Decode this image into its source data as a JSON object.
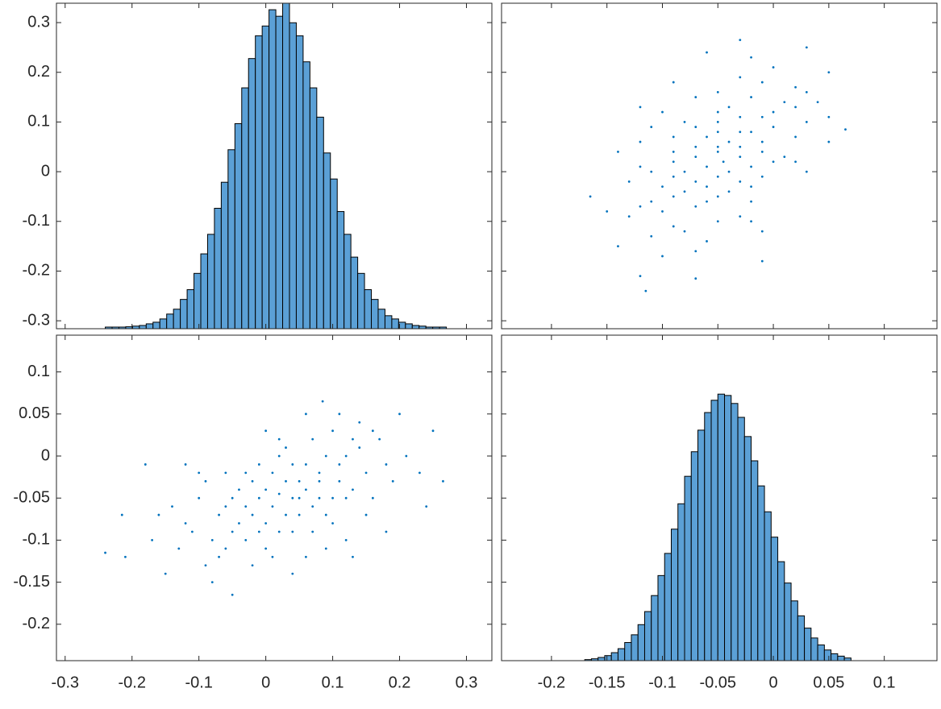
{
  "chart_data": [
    {
      "type": "histogram",
      "color": "#5ba0d6",
      "edgecolor": "#000000",
      "xlim": [
        -0.313,
        0.338
      ],
      "xticks": [
        -0.3,
        -0.2,
        -0.1,
        0,
        0.1,
        0.2,
        0.3
      ],
      "ylim": [
        -0.316,
        0.339
      ],
      "yticks": [
        -0.3,
        -0.2,
        -0.1,
        0,
        0.1,
        0.2,
        0.3
      ],
      "count_lim": [
        0,
        100
      ],
      "bins": [
        -0.24,
        -0.2298,
        -0.2196,
        -0.2094,
        -0.1992,
        -0.189,
        -0.1788,
        -0.1686,
        -0.1584,
        -0.1482,
        -0.138,
        -0.1278,
        -0.1176,
        -0.1074,
        -0.0972,
        -0.087,
        -0.0768,
        -0.0666,
        -0.0564,
        -0.0462,
        -0.036,
        -0.0258,
        -0.0156,
        -0.0054,
        0.0048,
        0.015,
        0.0252,
        0.0354,
        0.0456,
        0.0558,
        0.066,
        0.0762,
        0.0864,
        0.0966,
        0.1068,
        0.117,
        0.1272,
        0.1374,
        0.1476,
        0.1578,
        0.168,
        0.1782,
        0.1884,
        0.1986,
        0.2088,
        0.219,
        0.2292,
        0.2394,
        0.2496,
        0.2598,
        0.27
      ],
      "values": [
        0.5,
        0.5,
        0.5,
        0.6,
        0.8,
        1,
        1.5,
        2,
        3,
        4.5,
        6,
        9,
        12,
        17,
        23,
        29,
        37,
        45,
        55,
        63,
        74,
        83,
        90,
        93,
        98,
        96,
        100,
        94,
        90,
        82,
        74,
        65,
        54,
        46,
        36,
        29,
        22,
        17,
        12,
        9,
        6,
        4,
        3,
        2,
        1.5,
        1,
        0.8,
        0.5,
        0.5,
        0.5
      ]
    },
    {
      "type": "scatter",
      "color": "#0072bd",
      "xlim": [
        -0.245,
        0.1475
      ],
      "xticks": [
        -0.2,
        -0.15,
        -0.1,
        -0.05,
        0,
        0.05,
        0.1
      ],
      "ylim": [
        -0.316,
        0.339
      ],
      "yticks": [
        -0.3,
        -0.2,
        -0.1,
        0,
        0.1,
        0.2,
        0.3
      ],
      "x": [
        -0.045,
        -0.03,
        -0.06,
        -0.02,
        -0.07,
        -0.01,
        -0.08,
        -0.01,
        -0.03,
        -0.04,
        -0.05,
        -0.06,
        -0.02,
        -0.09,
        0,
        -0.02,
        -0.08,
        -0.07,
        -0.05,
        -0.04,
        -0.04,
        -0.05,
        -0.01,
        -0.1,
        0,
        -0.08,
        -0.02,
        -0.11,
        -0.05,
        0.01,
        -0.06,
        -0.03,
        -0.07,
        -0.09,
        -0.05,
        -0.03,
        0.02,
        -0.1,
        -0.03,
        -0.06,
        -0.09,
        -0.03,
        -0.03,
        -0.05,
        -0.07,
        -0.01,
        -0.12,
        0.02,
        -0.01,
        -0.09,
        0,
        -0.07,
        -0.05,
        -0.08,
        0.03,
        -0.04,
        -0.07,
        -0.11,
        -0.07,
        -0.05,
        -0.13,
        -0.1,
        -0.06,
        0.02,
        -0.09,
        -0.13,
        0.01,
        -0.02,
        -0.02,
        -0.12,
        -0.115,
        -0.07,
        -0.12,
        -0.03,
        0.03,
        0.065,
        -0.165,
        -0.12,
        -0.01,
        0.05,
        -0.14,
        0.05,
        -0.1,
        -0.06,
        0.04,
        -0.01,
        -0.11,
        -0.15,
        -0.09,
        0.03,
        0.05,
        -0.02,
        -0.14,
        0.03,
        -0.09,
        -0.12,
        -0.05,
        -0.11,
        0.02,
        0
      ],
      "values": [
        0.02,
        0.05,
        -0.03,
        0.08,
        -0.07,
        0.11,
        0,
        0.04,
        -0.02,
        0.13,
        -0.1,
        0.07,
        0.01,
        -0.05,
        0.09,
        0.15,
        -0.12,
        0.03,
        -0.01,
        0.06,
        -0.04,
        0.12,
        0.18,
        -0.08,
        0.02,
        0.1,
        -0.06,
        0,
        0.05,
        0.14,
        -0.14,
        0.08,
        -0.02,
        0.04,
        0.16,
        -0.09,
        0.07,
        -0.03,
        0.11,
        0.01,
        -0.11,
        0.19,
        0.03,
        -0.05,
        0.09,
        0.06,
        -0.07,
        0.13,
        -0.01,
        0.02,
        0.21,
        -0.16,
        0.08,
        -0.04,
        0.1,
        0,
        0.05,
        -0.13,
        0.15,
        0.04,
        -0.02,
        0.12,
        -0.06,
        0.17,
        0.07,
        -0.09,
        0.03,
        -0.1,
        0.23,
        0.01,
        -0.24,
        -0.215,
        -0.21,
        0.265,
        0.25,
        0.085,
        -0.05,
        0.13,
        -0.18,
        0.2,
        -0.15,
        0.06,
        -0.17,
        0.24,
        0.14,
        -0.12,
        0.09,
        -0.08,
        0.18,
        0,
        0.11,
        -0.03,
        0.04,
        0.16,
        -0.01,
        0.06,
        0.1,
        -0.06,
        0.02,
        0.12
      ]
    },
    {
      "type": "scatter",
      "color": "#0072bd",
      "xlim": [
        -0.313,
        0.338
      ],
      "xticks": [
        -0.3,
        -0.2,
        -0.1,
        0,
        0.1,
        0.2,
        0.3
      ],
      "ylim": [
        -0.2433,
        0.1437
      ],
      "yticks": [
        -0.2,
        -0.15,
        -0.1,
        -0.05,
        0,
        0.05,
        0.1
      ],
      "x": [
        0.02,
        0.05,
        -0.03,
        0.08,
        -0.07,
        0.11,
        0,
        0.04,
        -0.02,
        0.13,
        -0.1,
        0.07,
        0.01,
        -0.05,
        0.09,
        0.15,
        -0.12,
        0.03,
        -0.01,
        0.06,
        -0.04,
        0.12,
        0.18,
        -0.08,
        0.02,
        0.1,
        -0.06,
        0,
        0.05,
        0.14,
        -0.14,
        0.08,
        -0.02,
        0.04,
        0.16,
        -0.09,
        0.07,
        -0.03,
        0.11,
        0.01,
        -0.11,
        0.19,
        0.03,
        -0.05,
        0.09,
        0.06,
        -0.07,
        0.13,
        -0.01,
        0.02,
        0.21,
        -0.16,
        0.08,
        -0.04,
        0.1,
        0,
        0.05,
        -0.13,
        0.15,
        0.04,
        -0.02,
        0.12,
        -0.06,
        0.17,
        0.07,
        -0.09,
        0.03,
        -0.1,
        0.23,
        0.01,
        -0.24,
        -0.215,
        -0.21,
        0.265,
        0.25,
        0.085,
        -0.05,
        0.13,
        -0.18,
        0.2,
        -0.15,
        0.06,
        -0.17,
        0.24,
        0.14,
        -0.12,
        0.09,
        -0.08,
        0.18,
        0,
        0.11,
        -0.03,
        0.04,
        0.16,
        -0.01,
        0.06,
        0.1,
        -0.06,
        0.02,
        0.12
      ],
      "values": [
        -0.045,
        -0.03,
        -0.06,
        -0.02,
        -0.07,
        -0.01,
        -0.08,
        -0.01,
        -0.03,
        -0.04,
        -0.05,
        -0.06,
        -0.02,
        -0.09,
        0,
        -0.02,
        -0.08,
        -0.07,
        -0.05,
        -0.04,
        -0.04,
        -0.05,
        -0.01,
        -0.1,
        0,
        -0.08,
        -0.02,
        -0.11,
        -0.05,
        0.01,
        -0.06,
        -0.03,
        -0.07,
        -0.09,
        -0.05,
        -0.03,
        0.02,
        -0.1,
        -0.03,
        -0.06,
        -0.09,
        -0.03,
        -0.03,
        -0.05,
        -0.07,
        -0.01,
        -0.12,
        0.02,
        -0.01,
        -0.09,
        0,
        -0.07,
        -0.05,
        -0.08,
        0.03,
        -0.04,
        -0.07,
        -0.11,
        -0.07,
        -0.05,
        -0.13,
        -0.1,
        -0.06,
        0.02,
        -0.09,
        -0.13,
        0.01,
        -0.02,
        -0.02,
        -0.12,
        -0.115,
        -0.07,
        -0.12,
        -0.03,
        0.03,
        0.065,
        -0.165,
        -0.12,
        -0.01,
        0.05,
        -0.14,
        0.05,
        -0.1,
        -0.06,
        0.04,
        -0.01,
        -0.11,
        -0.15,
        -0.09,
        0.03,
        0.05,
        -0.02,
        -0.14,
        0.03,
        -0.09,
        -0.12,
        -0.05,
        -0.11,
        0.02,
        0
      ]
    },
    {
      "type": "histogram",
      "color": "#5ba0d6",
      "edgecolor": "#000000",
      "xlim": [
        -0.245,
        0.1475
      ],
      "xticks": [
        -0.2,
        -0.15,
        -0.1,
        -0.05,
        0,
        0.05,
        0.1
      ],
      "ylim": [
        -0.2433,
        0.1437
      ],
      "yticks": [
        -0.2,
        -0.15,
        -0.1,
        -0.05,
        0,
        0.05,
        0.1
      ],
      "count_lim": [
        0,
        122
      ],
      "bins": [
        -0.17,
        -0.164,
        -0.158,
        -0.152,
        -0.146,
        -0.14,
        -0.134,
        -0.128,
        -0.122,
        -0.116,
        -0.11,
        -0.104,
        -0.098,
        -0.092,
        -0.086,
        -0.08,
        -0.074,
        -0.068,
        -0.062,
        -0.056,
        -0.05,
        -0.044,
        -0.038,
        -0.032,
        -0.026,
        -0.02,
        -0.014,
        -0.008,
        -0.002,
        0.004,
        0.01,
        0.016,
        0.022,
        0.028,
        0.034,
        0.04,
        0.046,
        0.052,
        0.058,
        0.064,
        0.07
      ],
      "values": [
        0.4,
        0.7,
        1.2,
        1.9,
        3,
        4.5,
        6.8,
        9.7,
        13.5,
        18.4,
        24.4,
        31.9,
        40.2,
        49.3,
        58.8,
        69.1,
        78.3,
        86.4,
        93,
        97.6,
        99.9,
        99.4,
        96.4,
        91.2,
        84,
        74.9,
        65.5,
        55.8,
        46.3,
        37.1,
        29.1,
        22.4,
        16.8,
        12.2,
        8.5,
        5.9,
        4,
        2.6,
        1.7,
        1
      ]
    }
  ]
}
